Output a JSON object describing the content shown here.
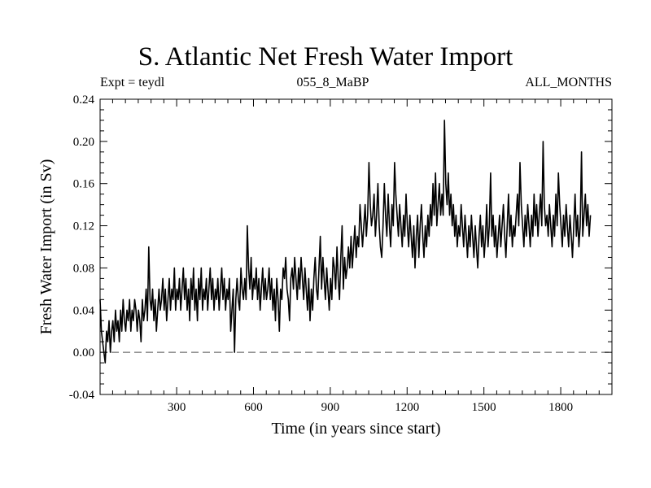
{
  "chart_data": {
    "type": "line",
    "title": "S. Atlantic Net Fresh Water Import",
    "expt_label": "Expt = teydl",
    "center_label": "055_8_MaBP",
    "right_label": "ALL_MONTHS",
    "xlabel": "Time (in years since start)",
    "ylabel": "Fresh Water Import (in Sv)",
    "xlim": [
      1,
      2000
    ],
    "ylim": [
      -0.04,
      0.24
    ],
    "xticks": [
      300,
      600,
      900,
      1200,
      1500,
      1800
    ],
    "xtick_labels": [
      "300",
      "600",
      "900",
      "1200",
      "1500",
      "1800"
    ],
    "yticks": [
      -0.04,
      0.0,
      0.04,
      0.08,
      0.12,
      0.16,
      0.2,
      0.24
    ],
    "ytick_labels": [
      "-0.04",
      "0.00",
      "0.04",
      "0.08",
      "0.12",
      "0.16",
      "0.20",
      "0.24"
    ],
    "reference_line": {
      "y": 0.0,
      "style": "dashed"
    },
    "series": [
      {
        "name": "Net Fresh Water Import",
        "x_step": 5,
        "x_start": 1,
        "values": [
          0.05,
          0.02,
          0.01,
          0.0,
          -0.01,
          0.02,
          0.01,
          0.03,
          0.0,
          0.02,
          0.03,
          0.01,
          0.04,
          0.02,
          0.03,
          0.01,
          0.04,
          0.02,
          0.05,
          0.03,
          0.02,
          0.04,
          0.03,
          0.05,
          0.02,
          0.04,
          0.03,
          0.05,
          0.04,
          0.02,
          0.04,
          0.03,
          0.01,
          0.05,
          0.03,
          0.04,
          0.06,
          0.03,
          0.1,
          0.05,
          0.04,
          0.06,
          0.03,
          0.05,
          0.02,
          0.04,
          0.06,
          0.04,
          0.05,
          0.07,
          0.04,
          0.06,
          0.03,
          0.05,
          0.07,
          0.04,
          0.06,
          0.05,
          0.08,
          0.04,
          0.06,
          0.05,
          0.07,
          0.04,
          0.06,
          0.08,
          0.05,
          0.07,
          0.04,
          0.06,
          0.03,
          0.07,
          0.05,
          0.08,
          0.04,
          0.06,
          0.03,
          0.07,
          0.05,
          0.08,
          0.04,
          0.06,
          0.05,
          0.07,
          0.04,
          0.06,
          0.08,
          0.05,
          0.07,
          0.04,
          0.06,
          0.05,
          0.07,
          0.04,
          0.06,
          0.08,
          0.05,
          0.07,
          0.04,
          0.06,
          0.05,
          0.07,
          0.02,
          0.04,
          0.06,
          0.0,
          0.05,
          0.07,
          0.05,
          0.04,
          0.08,
          0.06,
          0.05,
          0.07,
          0.05,
          0.12,
          0.08,
          0.06,
          0.09,
          0.05,
          0.07,
          0.06,
          0.08,
          0.05,
          0.07,
          0.04,
          0.06,
          0.08,
          0.05,
          0.07,
          0.05,
          0.06,
          0.08,
          0.05,
          0.07,
          0.04,
          0.06,
          0.03,
          0.07,
          0.05,
          0.02,
          0.06,
          0.05,
          0.08,
          0.07,
          0.09,
          0.06,
          0.05,
          0.03,
          0.07,
          0.08,
          0.06,
          0.09,
          0.07,
          0.05,
          0.08,
          0.06,
          0.09,
          0.07,
          0.05,
          0.08,
          0.06,
          0.04,
          0.07,
          0.03,
          0.06,
          0.04,
          0.07,
          0.09,
          0.06,
          0.05,
          0.08,
          0.11,
          0.06,
          0.09,
          0.07,
          0.05,
          0.08,
          0.06,
          0.04,
          0.07,
          0.05,
          0.09,
          0.08,
          0.06,
          0.1,
          0.07,
          0.05,
          0.09,
          0.12,
          0.06,
          0.09,
          0.07,
          0.08,
          0.1,
          0.08,
          0.11,
          0.08,
          0.1,
          0.12,
          0.09,
          0.11,
          0.1,
          0.14,
          0.12,
          0.1,
          0.12,
          0.14,
          0.11,
          0.13,
          0.18,
          0.14,
          0.12,
          0.13,
          0.15,
          0.11,
          0.13,
          0.16,
          0.12,
          0.1,
          0.09,
          0.12,
          0.16,
          0.13,
          0.11,
          0.15,
          0.12,
          0.1,
          0.14,
          0.12,
          0.18,
          0.15,
          0.13,
          0.11,
          0.14,
          0.12,
          0.1,
          0.13,
          0.11,
          0.15,
          0.12,
          0.1,
          0.13,
          0.11,
          0.09,
          0.12,
          0.08,
          0.11,
          0.13,
          0.09,
          0.12,
          0.14,
          0.11,
          0.09,
          0.12,
          0.1,
          0.13,
          0.11,
          0.14,
          0.12,
          0.16,
          0.13,
          0.17,
          0.12,
          0.14,
          0.16,
          0.13,
          0.15,
          0.13,
          0.22,
          0.16,
          0.14,
          0.17,
          0.13,
          0.15,
          0.12,
          0.14,
          0.11,
          0.13,
          0.1,
          0.12,
          0.11,
          0.14,
          0.12,
          0.1,
          0.13,
          0.11,
          0.09,
          0.12,
          0.1,
          0.13,
          0.11,
          0.09,
          0.12,
          0.1,
          0.08,
          0.11,
          0.13,
          0.1,
          0.12,
          0.09,
          0.11,
          0.14,
          0.1,
          0.12,
          0.17,
          0.11,
          0.13,
          0.1,
          0.12,
          0.09,
          0.11,
          0.13,
          0.1,
          0.12,
          0.14,
          0.11,
          0.09,
          0.12,
          0.15,
          0.11,
          0.13,
          0.1,
          0.12,
          0.11,
          0.13,
          0.15,
          0.12,
          0.18,
          0.14,
          0.12,
          0.1,
          0.13,
          0.11,
          0.14,
          0.12,
          0.1,
          0.13,
          0.11,
          0.15,
          0.12,
          0.14,
          0.11,
          0.13,
          0.15,
          0.12,
          0.2,
          0.14,
          0.12,
          0.13,
          0.11,
          0.14,
          0.12,
          0.1,
          0.13,
          0.11,
          0.15,
          0.12,
          0.17,
          0.14,
          0.12,
          0.1,
          0.13,
          0.11,
          0.14,
          0.12,
          0.1,
          0.13,
          0.11,
          0.09,
          0.12,
          0.15,
          0.11,
          0.13,
          0.1,
          0.12,
          0.19,
          0.11,
          0.13,
          0.15,
          0.12,
          0.14,
          0.11,
          0.13
        ]
      }
    ]
  }
}
